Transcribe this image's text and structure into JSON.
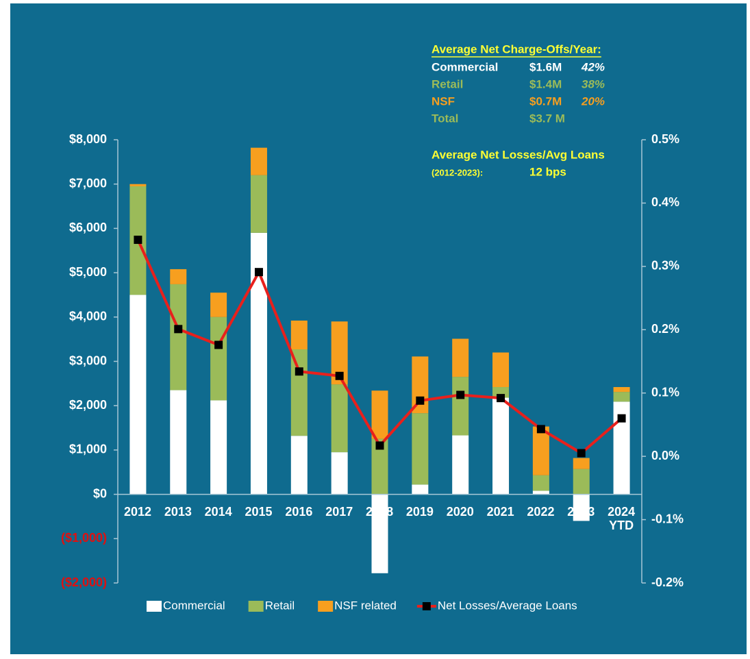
{
  "chart_data": {
    "type": "bar",
    "categories": [
      "2012",
      "2013",
      "2014",
      "2015",
      "2016",
      "2017",
      "2018",
      "2019",
      "2020",
      "2021",
      "2022",
      "2023",
      "2024\nYTD"
    ],
    "series": [
      {
        "name": "Commercial",
        "color": "#ffffff",
        "values": [
          4500,
          2350,
          2120,
          5900,
          1320,
          950,
          -1780,
          220,
          1330,
          2180,
          80,
          -600,
          2090
        ]
      },
      {
        "name": "Retail",
        "color": "#9bbb59",
        "values": [
          2450,
          2390,
          1880,
          1300,
          1950,
          1530,
          1250,
          1610,
          1320,
          240,
          350,
          570,
          220
        ]
      },
      {
        "name": "NSF related",
        "color": "#f79f1f",
        "values": [
          50,
          340,
          550,
          620,
          650,
          1420,
          1090,
          1280,
          860,
          780,
          1100,
          250,
          110
        ]
      },
      {
        "name": "Net Losses/Average Loans",
        "type": "line",
        "axis": "y2",
        "color": "#e8201c",
        "marker_color": "#000000",
        "values": [
          0.342,
          0.201,
          0.176,
          0.291,
          0.134,
          0.127,
          0.017,
          0.088,
          0.097,
          0.092,
          0.043,
          0.005,
          0.06
        ]
      }
    ],
    "ylim": [
      -2000,
      8000
    ],
    "yticks": [
      {
        "value": 8000,
        "label": "$8,000"
      },
      {
        "value": 7000,
        "label": "$7,000"
      },
      {
        "value": 6000,
        "label": "$6,000"
      },
      {
        "value": 5000,
        "label": "$5,000"
      },
      {
        "value": 4000,
        "label": "$4,000"
      },
      {
        "value": 3000,
        "label": "$3,000"
      },
      {
        "value": 2000,
        "label": "$2,000"
      },
      {
        "value": 1000,
        "label": "$1,000"
      },
      {
        "value": 0,
        "label": "$0"
      },
      {
        "value": -1000,
        "label": "($1,000)"
      },
      {
        "value": -2000,
        "label": "($2,000)"
      }
    ],
    "negative_tick_color": "#e01010",
    "y2lim": [
      -0.2,
      0.5
    ],
    "y2ticks": [
      {
        "value": 0.5,
        "label": "0.5%"
      },
      {
        "value": 0.4,
        "label": "0.4%"
      },
      {
        "value": 0.3,
        "label": "0.3%"
      },
      {
        "value": 0.2,
        "label": "0.2%"
      },
      {
        "value": 0.1,
        "label": "0.1%"
      },
      {
        "value": 0.0,
        "label": "0.0%"
      },
      {
        "value": -0.1,
        "label": "-0.1%"
      },
      {
        "value": -0.2,
        "label": "-0.2%"
      }
    ],
    "grid": false,
    "legend": "bottom",
    "annotation": {
      "title": "Average Net Charge-Offs/Year:",
      "rows": [
        {
          "label": "Commercial",
          "amount": "$1.6M",
          "share": "42%",
          "color": "#ffffff"
        },
        {
          "label": "Retail",
          "amount": "$1.4M",
          "share": "38%",
          "color": "#9bbb59"
        },
        {
          "label": "NSF",
          "amount": "$0.7M",
          "share": "20%",
          "color": "#f79f1f"
        },
        {
          "label": "Total",
          "amount": "$3.7 M",
          "color": "#9bbb59"
        }
      ],
      "losses_title": "Average Net Losses/Avg Loans",
      "losses_period": "(2012-2023):",
      "losses_value": "12 bps"
    }
  }
}
